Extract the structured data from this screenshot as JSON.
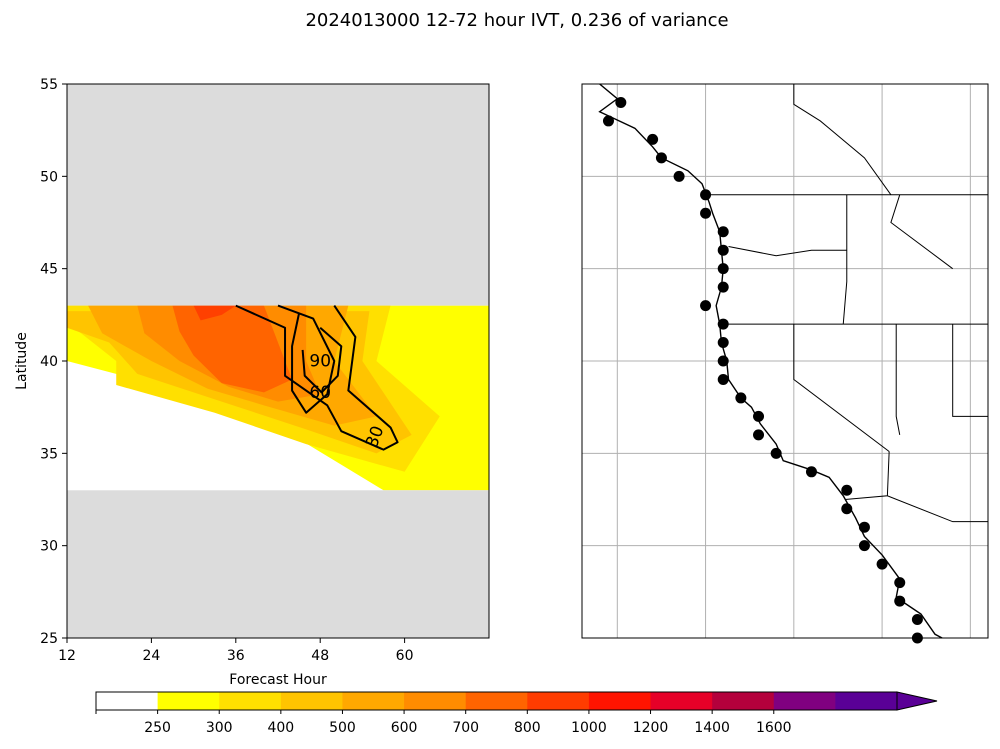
{
  "figure": {
    "title": "2024013000 12-72 hour IVT, 0.236 of variance"
  },
  "chart_data": [
    {
      "type": "contour",
      "xlabel": "Forecast Hour",
      "ylabel": "Latitude",
      "xlim": [
        12,
        72
      ],
      "ylim": [
        25,
        55
      ],
      "xticks": [
        12,
        24,
        36,
        48,
        60
      ],
      "yticks": [
        25,
        30,
        35,
        40,
        45,
        50,
        55
      ],
      "masked_lat_ranges": [
        [
          43,
          55
        ],
        [
          25,
          33
        ]
      ],
      "contour_labels": [
        {
          "text": "90",
          "x": 48,
          "y": 39.7
        },
        {
          "text": "60",
          "x": 48,
          "y": 38.0
        },
        {
          "text": "30",
          "x": 56.5,
          "y": 35.8
        }
      ],
      "fill_levels": [
        {
          "level": "250-300",
          "color": "#ffff00",
          "polygon": [
            [
              12,
              43
            ],
            [
              72,
              43
            ],
            [
              72,
              33
            ],
            [
              57,
              33
            ],
            [
              44,
              36
            ],
            [
              32,
              38
            ],
            [
              12,
              40
            ]
          ]
        },
        {
          "level": "300-400",
          "color": "#ffe000",
          "polygon": [
            [
              12,
              43
            ],
            [
              58,
              43
            ],
            [
              56,
              40
            ],
            [
              65,
              37
            ],
            [
              60,
              34
            ],
            [
              46,
              35.5
            ],
            [
              33,
              37.2
            ],
            [
              19,
              38.7
            ],
            [
              19,
              40
            ],
            [
              14,
              41.5
            ],
            [
              12,
              42
            ]
          ]
        },
        {
          "level": "400-500",
          "color": "#ffc400",
          "polygon": [
            [
              12,
              42.7
            ],
            [
              55,
              42.7
            ],
            [
              54,
              40
            ],
            [
              61,
              36
            ],
            [
              56,
              35
            ],
            [
              46,
              36.3
            ],
            [
              34,
              37.8
            ],
            [
              22,
              39.3
            ],
            [
              18,
              41
            ],
            [
              12,
              41.8
            ]
          ]
        },
        {
          "level": "500-600",
          "color": "#ffa800",
          "polygon": [
            [
              15,
              43
            ],
            [
              52,
              43
            ],
            [
              50,
              40
            ],
            [
              56,
              37
            ],
            [
              50,
              36.5
            ],
            [
              40,
              37.6
            ],
            [
              32,
              38.5
            ],
            [
              24,
              40
            ],
            [
              17,
              41.5
            ]
          ]
        },
        {
          "level": "600-700",
          "color": "#ff8c00",
          "polygon": [
            [
              22,
              43
            ],
            [
              46,
              43
            ],
            [
              46,
              40
            ],
            [
              48,
              38.2
            ],
            [
              42,
              37.8
            ],
            [
              35,
              38.6
            ],
            [
              28,
              40
            ],
            [
              23,
              41.5
            ]
          ]
        },
        {
          "level": "700-800",
          "color": "#ff6400",
          "polygon": [
            [
              27,
              43
            ],
            [
              40,
              43
            ],
            [
              42,
              41
            ],
            [
              44,
              39
            ],
            [
              40,
              38.3
            ],
            [
              34,
              38.8
            ],
            [
              30,
              40.3
            ],
            [
              28,
              41.6
            ]
          ]
        },
        {
          "level": "800-1000",
          "color": "#ff4000",
          "polygon": [
            [
              30,
              43
            ],
            [
              36,
              43
            ],
            [
              34,
              42.5
            ],
            [
              31,
              42.2
            ]
          ]
        }
      ],
      "contour_lines": [
        {
          "level": 30,
          "points": [
            [
              36,
              43
            ],
            [
              43,
              41.8
            ],
            [
              43,
              39.2
            ],
            [
              49,
              37.6
            ],
            [
              51,
              36.2
            ],
            [
              57,
              35.2
            ],
            [
              59,
              35.6
            ],
            [
              58,
              36.4
            ],
            [
              52,
              38.4
            ],
            [
              53,
              41.3
            ],
            [
              50,
              43
            ]
          ]
        },
        {
          "level": 60,
          "points": [
            [
              42,
              43
            ],
            [
              47,
              42.3
            ],
            [
              50,
              40
            ],
            [
              49,
              38.2
            ],
            [
              46,
              37.2
            ],
            [
              44,
              38.4
            ],
            [
              44,
              40.8
            ],
            [
              45,
              42.6
            ]
          ]
        },
        {
          "level": 90,
          "points": [
            [
              48,
              41.8
            ],
            [
              51,
              40.8
            ],
            [
              50.5,
              39.2
            ],
            [
              48.2,
              38.3
            ],
            [
              45.8,
              39.2
            ],
            [
              45.5,
              40.6
            ]
          ]
        }
      ]
    },
    {
      "type": "map",
      "description_points": "grid of black station markers along the U.S. West Coast",
      "lon_range": [
        -132,
        -109
      ],
      "lat_range": [
        25,
        55
      ],
      "gridlines_lon": [
        -130,
        -125,
        -120,
        -115,
        -110
      ],
      "gridlines_lat": [
        30,
        35,
        40,
        45,
        50
      ],
      "grid": true,
      "points": [
        {
          "lon": -129.8,
          "lat": 54
        },
        {
          "lon": -130.5,
          "lat": 53
        },
        {
          "lon": -128.0,
          "lat": 52
        },
        {
          "lon": -127.5,
          "lat": 51
        },
        {
          "lon": -126.5,
          "lat": 50
        },
        {
          "lon": -125.0,
          "lat": 49
        },
        {
          "lon": -125.0,
          "lat": 48
        },
        {
          "lon": -124.0,
          "lat": 47
        },
        {
          "lon": -124.0,
          "lat": 46
        },
        {
          "lon": -124.0,
          "lat": 45
        },
        {
          "lon": -124.0,
          "lat": 44
        },
        {
          "lon": -125.0,
          "lat": 43
        },
        {
          "lon": -124.0,
          "lat": 42
        },
        {
          "lon": -124.0,
          "lat": 41
        },
        {
          "lon": -124.0,
          "lat": 40
        },
        {
          "lon": -124.0,
          "lat": 39
        },
        {
          "lon": -123.0,
          "lat": 38
        },
        {
          "lon": -122.0,
          "lat": 37
        },
        {
          "lon": -122.0,
          "lat": 36
        },
        {
          "lon": -121.0,
          "lat": 35
        },
        {
          "lon": -119.0,
          "lat": 34
        },
        {
          "lon": -117.0,
          "lat": 33
        },
        {
          "lon": -117.0,
          "lat": 32
        },
        {
          "lon": -116.0,
          "lat": 31
        },
        {
          "lon": -116.0,
          "lat": 30
        },
        {
          "lon": -115.0,
          "lat": 29
        },
        {
          "lon": -114.0,
          "lat": 28
        },
        {
          "lon": -114.0,
          "lat": 27
        },
        {
          "lon": -113.0,
          "lat": 26
        },
        {
          "lon": -113.0,
          "lat": 25
        }
      ]
    }
  ],
  "colorbar": {
    "ticks": [
      "250",
      "300",
      "400",
      "500",
      "600",
      "700",
      "800",
      "1000",
      "1200",
      "1400",
      "1600"
    ],
    "colors": [
      "#ffffff",
      "#ffff00",
      "#ffe000",
      "#ffc400",
      "#ffa800",
      "#ff8c00",
      "#ff6400",
      "#ff3c00",
      "#ff1400",
      "#e60028",
      "#b4003c",
      "#800080",
      "#5a0096"
    ],
    "extend": "max"
  },
  "colors": {
    "mask": "#dcdcdc",
    "line": "#000000",
    "grid": "#b0b0b0"
  }
}
